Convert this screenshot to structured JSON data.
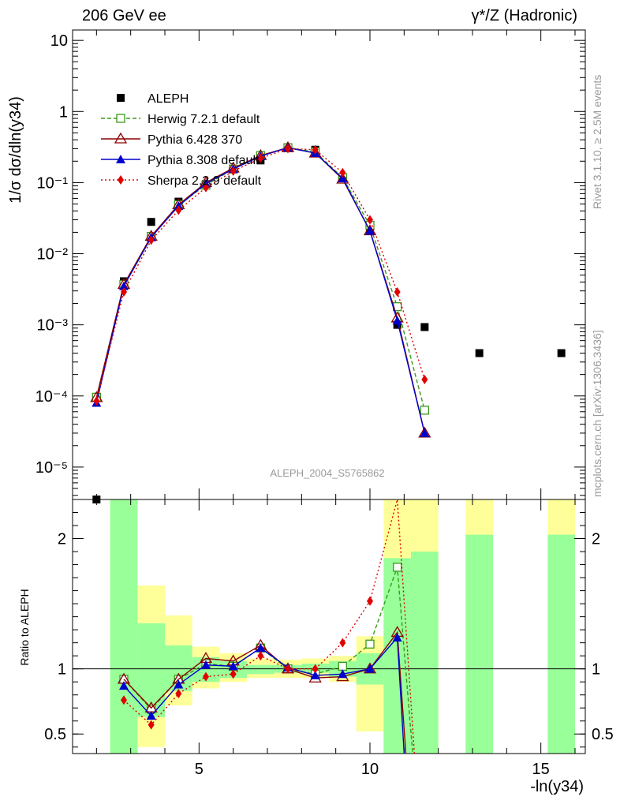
{
  "chart_data": [
    {
      "type": "line",
      "panel": "main",
      "title_left": "206 GeV ee",
      "title_right": "γ*/Z (Hadronic)",
      "ylabel": "1/σ dσ/dln(y34)",
      "xlabel": "-ln(y34)",
      "yscale": "log",
      "xlim": [
        1.3,
        16.3
      ],
      "ylim": [
        3.5e-06,
        14
      ],
      "y_tick_labels": [
        "10⁻⁵",
        "10⁻⁴",
        "10⁻³",
        "10⁻²",
        "10⁻¹",
        "1",
        "10"
      ],
      "side_label_top": "Rivet 3.1.10, ≥ 2.5M events",
      "side_label_bottom": "mcplots.cern.ch [arXiv:1306.3436]",
      "analysis_label": "ALEPH_2004_S5765862",
      "legend_position": "top-left",
      "x": [
        2.0,
        2.8,
        3.6,
        4.4,
        5.2,
        6.0,
        6.8,
        7.6,
        8.4,
        9.2,
        10.0,
        10.8,
        11.6
      ],
      "series": [
        {
          "name": "ALEPH",
          "color": "#000000",
          "marker": "square",
          "x": [
            2.0,
            2.8,
            3.6,
            4.4,
            5.2,
            6.0,
            6.8,
            7.6,
            8.4,
            9.2,
            10.0,
            10.8,
            11.6,
            13.2,
            15.6
          ],
          "values": [
            3.5e-06,
            0.0041,
            0.028,
            0.054,
            0.095,
            0.155,
            0.205,
            0.31,
            0.29,
            0.118,
            0.021,
            0.001,
            0.00093,
            0.0004,
            0.0004
          ]
        },
        {
          "name": "Herwig 7.2.1 default",
          "color": "#3a9a1a",
          "marker": "open-square",
          "dash": "5,3",
          "values": [
            9.6e-05,
            0.0037,
            0.0175,
            0.049,
            0.092,
            0.155,
            0.24,
            0.31,
            0.27,
            0.118,
            0.025,
            0.0018,
            6.3e-05
          ]
        },
        {
          "name": "Pythia 6.428 370",
          "color": "#8b0000",
          "marker": "open-triangle",
          "values": [
            9.5e-05,
            0.0037,
            0.0176,
            0.049,
            0.1,
            0.16,
            0.24,
            0.31,
            0.26,
            0.112,
            0.021,
            0.00125,
            3e-05
          ]
        },
        {
          "name": "Pythia 8.308 default",
          "color": "#0000cc",
          "marker": "triangle",
          "values": [
            8e-05,
            0.0035,
            0.017,
            0.047,
            0.097,
            0.155,
            0.235,
            0.31,
            0.26,
            0.115,
            0.021,
            0.00115,
            3e-05
          ]
        },
        {
          "name": "Sherpa 2.2.9 default",
          "color": "#e00000",
          "marker": "diamond",
          "dash": "2,3",
          "values": [
            8.5e-05,
            0.0029,
            0.0155,
            0.041,
            0.085,
            0.145,
            0.22,
            0.3,
            0.29,
            0.138,
            0.03,
            0.0029,
            0.00017
          ]
        }
      ]
    },
    {
      "type": "line",
      "panel": "ratio",
      "ylabel": "Ratio to ALEPH",
      "xlabel": "-ln(y34)",
      "xlim": [
        1.3,
        16.3
      ],
      "ylim": [
        0.35,
        2.3
      ],
      "x_ticks": [
        5,
        10,
        15
      ],
      "y_ticks": [
        0.5,
        1,
        2
      ],
      "bands": {
        "green": [
          {
            "x0": 2.4,
            "x1": 3.2,
            "lo": 0.35,
            "hi": 2.3
          },
          {
            "x0": 3.2,
            "x1": 4.0,
            "lo": 0.63,
            "hi": 1.35
          },
          {
            "x0": 4.0,
            "x1": 4.8,
            "lo": 0.83,
            "hi": 1.18
          },
          {
            "x0": 4.8,
            "x1": 5.6,
            "lo": 0.9,
            "hi": 1.09
          },
          {
            "x0": 5.6,
            "x1": 6.4,
            "lo": 0.93,
            "hi": 1.06
          },
          {
            "x0": 6.4,
            "x1": 7.2,
            "lo": 0.96,
            "hi": 1.03
          },
          {
            "x0": 7.2,
            "x1": 8.0,
            "lo": 0.97,
            "hi": 1.03
          },
          {
            "x0": 8.0,
            "x1": 8.8,
            "lo": 0.97,
            "hi": 1.04
          },
          {
            "x0": 8.8,
            "x1": 9.6,
            "lo": 0.94,
            "hi": 1.06
          },
          {
            "x0": 9.6,
            "x1": 10.4,
            "lo": 0.88,
            "hi": 1.12
          },
          {
            "x0": 10.4,
            "x1": 11.2,
            "lo": 0.35,
            "hi": 1.85
          },
          {
            "x0": 11.2,
            "x1": 12.0,
            "lo": 0.35,
            "hi": 1.9
          },
          {
            "x0": 12.8,
            "x1": 13.6,
            "lo": 0.35,
            "hi": 2.03
          },
          {
            "x0": 15.2,
            "x1": 16.0,
            "lo": 0.35,
            "hi": 2.03
          }
        ],
        "yellow": [
          {
            "x0": 2.4,
            "x1": 3.2,
            "lo": 0.35,
            "hi": 2.3
          },
          {
            "x0": 3.2,
            "x1": 4.0,
            "lo": 0.4,
            "hi": 1.64
          },
          {
            "x0": 4.0,
            "x1": 4.8,
            "lo": 0.72,
            "hi": 1.41
          },
          {
            "x0": 4.8,
            "x1": 5.6,
            "lo": 0.85,
            "hi": 1.17
          },
          {
            "x0": 5.6,
            "x1": 6.4,
            "lo": 0.9,
            "hi": 1.12
          },
          {
            "x0": 6.4,
            "x1": 7.2,
            "lo": 0.93,
            "hi": 1.08
          },
          {
            "x0": 7.2,
            "x1": 8.0,
            "lo": 0.93,
            "hi": 1.07
          },
          {
            "x0": 8.0,
            "x1": 8.8,
            "lo": 0.93,
            "hi": 1.08
          },
          {
            "x0": 8.8,
            "x1": 9.6,
            "lo": 0.9,
            "hi": 1.1
          },
          {
            "x0": 9.6,
            "x1": 10.4,
            "lo": 0.52,
            "hi": 1.25
          },
          {
            "x0": 10.4,
            "x1": 11.2,
            "lo": 0.35,
            "hi": 2.3
          },
          {
            "x0": 11.2,
            "x1": 12.0,
            "lo": 0.35,
            "hi": 2.3
          },
          {
            "x0": 12.8,
            "x1": 13.6,
            "lo": 0.35,
            "hi": 2.3
          },
          {
            "x0": 15.2,
            "x1": 16.0,
            "lo": 0.35,
            "hi": 2.3
          }
        ]
      },
      "x": [
        2.8,
        3.6,
        4.4,
        5.2,
        6.0,
        6.8,
        7.6,
        8.4,
        9.2,
        10.0,
        10.8
      ],
      "series": [
        {
          "name": "Herwig 7.2.1 default",
          "color": "#3a9a1a",
          "marker": "open-square",
          "dash": "5,3",
          "values": [
            0.92,
            0.69,
            0.92,
            1.04,
            1.02,
            1.16,
            1.0,
            0.96,
            1.02,
            1.19,
            1.78
          ],
          "tail": [
            [
              11.25,
              0.35
            ]
          ]
        },
        {
          "name": "Pythia 6.428 370",
          "color": "#8b0000",
          "marker": "open-triangle",
          "values": [
            0.92,
            0.7,
            0.92,
            1.08,
            1.06,
            1.18,
            1.0,
            0.93,
            0.94,
            1.0,
            1.28
          ],
          "tail": [
            [
              11.05,
              0.35
            ]
          ]
        },
        {
          "name": "Pythia 8.308 default",
          "color": "#0000cc",
          "marker": "triangle",
          "values": [
            0.87,
            0.64,
            0.88,
            1.03,
            1.02,
            1.16,
            1.01,
            0.95,
            0.96,
            1.0,
            1.24
          ],
          "tail": [
            [
              11.0,
              0.35
            ]
          ]
        },
        {
          "name": "Sherpa 2.2.9 default",
          "color": "#e00000",
          "marker": "diamond",
          "dash": "2,3",
          "values": [
            0.76,
            0.57,
            0.81,
            0.94,
            0.96,
            1.1,
            1.0,
            1.0,
            1.2,
            1.52,
            2.3
          ],
          "tail": [
            [
              11.3,
              0.35
            ]
          ]
        }
      ]
    }
  ]
}
